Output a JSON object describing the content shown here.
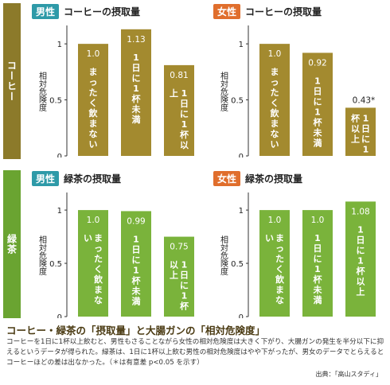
{
  "colors": {
    "coffee_bar": "#a38a2f",
    "green_bar": "#7ab33b",
    "coffee_tab": "#8c7a2a",
    "green_tab": "#6aa431",
    "male_badge": "#2e9aa8",
    "female_badge": "#e06e2c"
  },
  "sections": [
    {
      "label": "コーヒー"
    },
    {
      "label": "緑茶"
    }
  ],
  "ylabel": "相対危険度",
  "chart_data": [
    {
      "type": "bar",
      "gender": "男性",
      "title": "コーヒーの摂取量",
      "categories": [
        "まったく飲まない",
        "1日に1杯未満",
        "1日に1杯以上"
      ],
      "values": [
        1.0,
        1.13,
        0.81
      ],
      "value_labels": [
        "1.0",
        "1.13",
        "0.81"
      ],
      "ylim": [
        0,
        1.15
      ],
      "yticks": [
        "0",
        "0.5",
        "1"
      ]
    },
    {
      "type": "bar",
      "gender": "女性",
      "title": "コーヒーの摂取量",
      "categories": [
        "まったく飲まない",
        "1日に1杯未満",
        "1日に1杯以上"
      ],
      "values": [
        1.0,
        0.92,
        0.43
      ],
      "value_labels": [
        "1.0",
        "0.92",
        "0.43*"
      ],
      "ylim": [
        0,
        1.15
      ],
      "yticks": [
        "0",
        "0.5",
        "1"
      ]
    },
    {
      "type": "bar",
      "gender": "男性",
      "title": "緑茶の摂取量",
      "categories": [
        "まったく飲まない",
        "1日に1杯未満",
        "1日に1杯以上"
      ],
      "values": [
        1.0,
        0.99,
        0.75
      ],
      "value_labels": [
        "1.0",
        "0.99",
        "0.75"
      ],
      "ylim": [
        0,
        1.15
      ],
      "yticks": [
        "0",
        "0.5",
        "1"
      ]
    },
    {
      "type": "bar",
      "gender": "女性",
      "title": "緑茶の摂取量",
      "categories": [
        "まったく飲まない",
        "1日に1杯未満",
        "1日に1杯以上"
      ],
      "values": [
        1.0,
        1.0,
        1.08
      ],
      "value_labels": [
        "1.0",
        "1.0",
        "1.08"
      ],
      "ylim": [
        0,
        1.15
      ],
      "yticks": [
        "0",
        "0.5",
        "1"
      ]
    }
  ],
  "caption": {
    "title": "コーヒー・緑茶の「摂取量」と大腸ガンの「相対危険度」",
    "text": "コーヒーを1日に1杯以上飲むと、男性もさることながら女性の相対危険度は大きく下がり、大腸ガンの発生を半分以下に抑えるというデータが得られた。緑茶は、1日に1杯以上飲む男性の相対危険度はやや下がったが、男女のデータでとらえるとコーヒーほどの差は出なかった。（＊は有意差 p<0.05 を示す）",
    "source": "出典：「高山スタディ」"
  }
}
